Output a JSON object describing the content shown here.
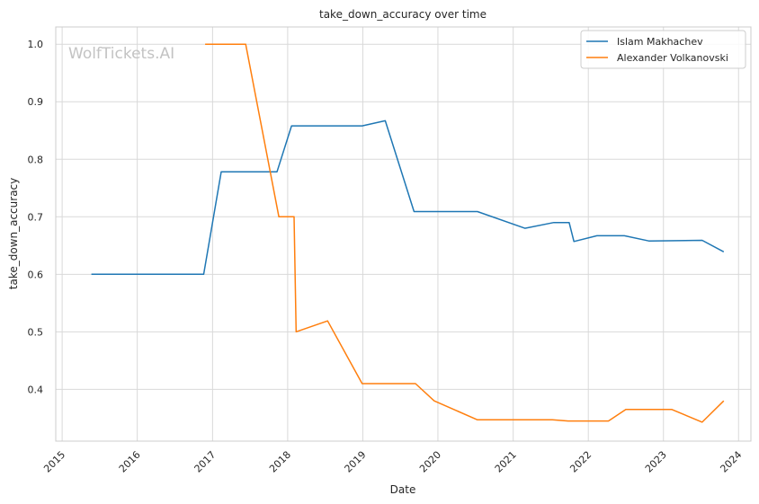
{
  "chart_data": {
    "type": "line",
    "title": "take_down_accuracy over time",
    "xlabel": "Date",
    "ylabel": "take_down_accuracy",
    "watermark": "WolfTickets.AI",
    "x_ticks": [
      "2015",
      "2016",
      "2017",
      "2018",
      "2019",
      "2020",
      "2021",
      "2022",
      "2023",
      "2024"
    ],
    "y_ticks": [
      "0.4",
      "0.5",
      "0.6",
      "0.7",
      "0.8",
      "0.9",
      "1.0"
    ],
    "xlim": [
      "2014-12-01",
      "2024-03-01"
    ],
    "ylim": [
      0.31,
      1.03
    ],
    "grid": true,
    "legend_position": "top-right",
    "series": [
      {
        "name": "Islam Makhachev",
        "color": "#1f77b4",
        "points": [
          [
            "2015-05-23",
            0.6
          ],
          [
            "2016-11-19",
            0.6
          ],
          [
            "2017-02-12",
            0.778
          ],
          [
            "2017-11-10",
            0.778
          ],
          [
            "2018-01-20",
            0.858
          ],
          [
            "2018-12-29",
            0.858
          ],
          [
            "2019-04-20",
            0.867
          ],
          [
            "2019-09-07",
            0.709
          ],
          [
            "2020-07-11",
            0.709
          ],
          [
            "2021-02-27",
            0.68
          ],
          [
            "2021-07-17",
            0.69
          ],
          [
            "2021-09-30",
            0.69
          ],
          [
            "2021-10-23",
            0.657
          ],
          [
            "2022-02-12",
            0.667
          ],
          [
            "2022-06-25",
            0.667
          ],
          [
            "2022-10-22",
            0.658
          ],
          [
            "2023-07-08",
            0.659
          ],
          [
            "2023-10-21",
            0.639
          ]
        ]
      },
      {
        "name": "Alexander Volkanovski",
        "color": "#ff7f0e",
        "points": [
          [
            "2016-11-26",
            1.0
          ],
          [
            "2017-06-11",
            1.0
          ],
          [
            "2017-11-19",
            0.7
          ],
          [
            "2018-02-01",
            0.7
          ],
          [
            "2018-02-11",
            0.5
          ],
          [
            "2018-07-14",
            0.519
          ],
          [
            "2018-12-29",
            0.41
          ],
          [
            "2019-09-14",
            0.41
          ],
          [
            "2019-12-14",
            0.38
          ],
          [
            "2020-07-11",
            0.347
          ],
          [
            "2021-07-10",
            0.347
          ],
          [
            "2021-09-25",
            0.345
          ],
          [
            "2022-04-09",
            0.345
          ],
          [
            "2022-07-02",
            0.365
          ],
          [
            "2023-02-11",
            0.365
          ],
          [
            "2023-07-08",
            0.343
          ],
          [
            "2023-10-21",
            0.38
          ]
        ]
      }
    ]
  }
}
